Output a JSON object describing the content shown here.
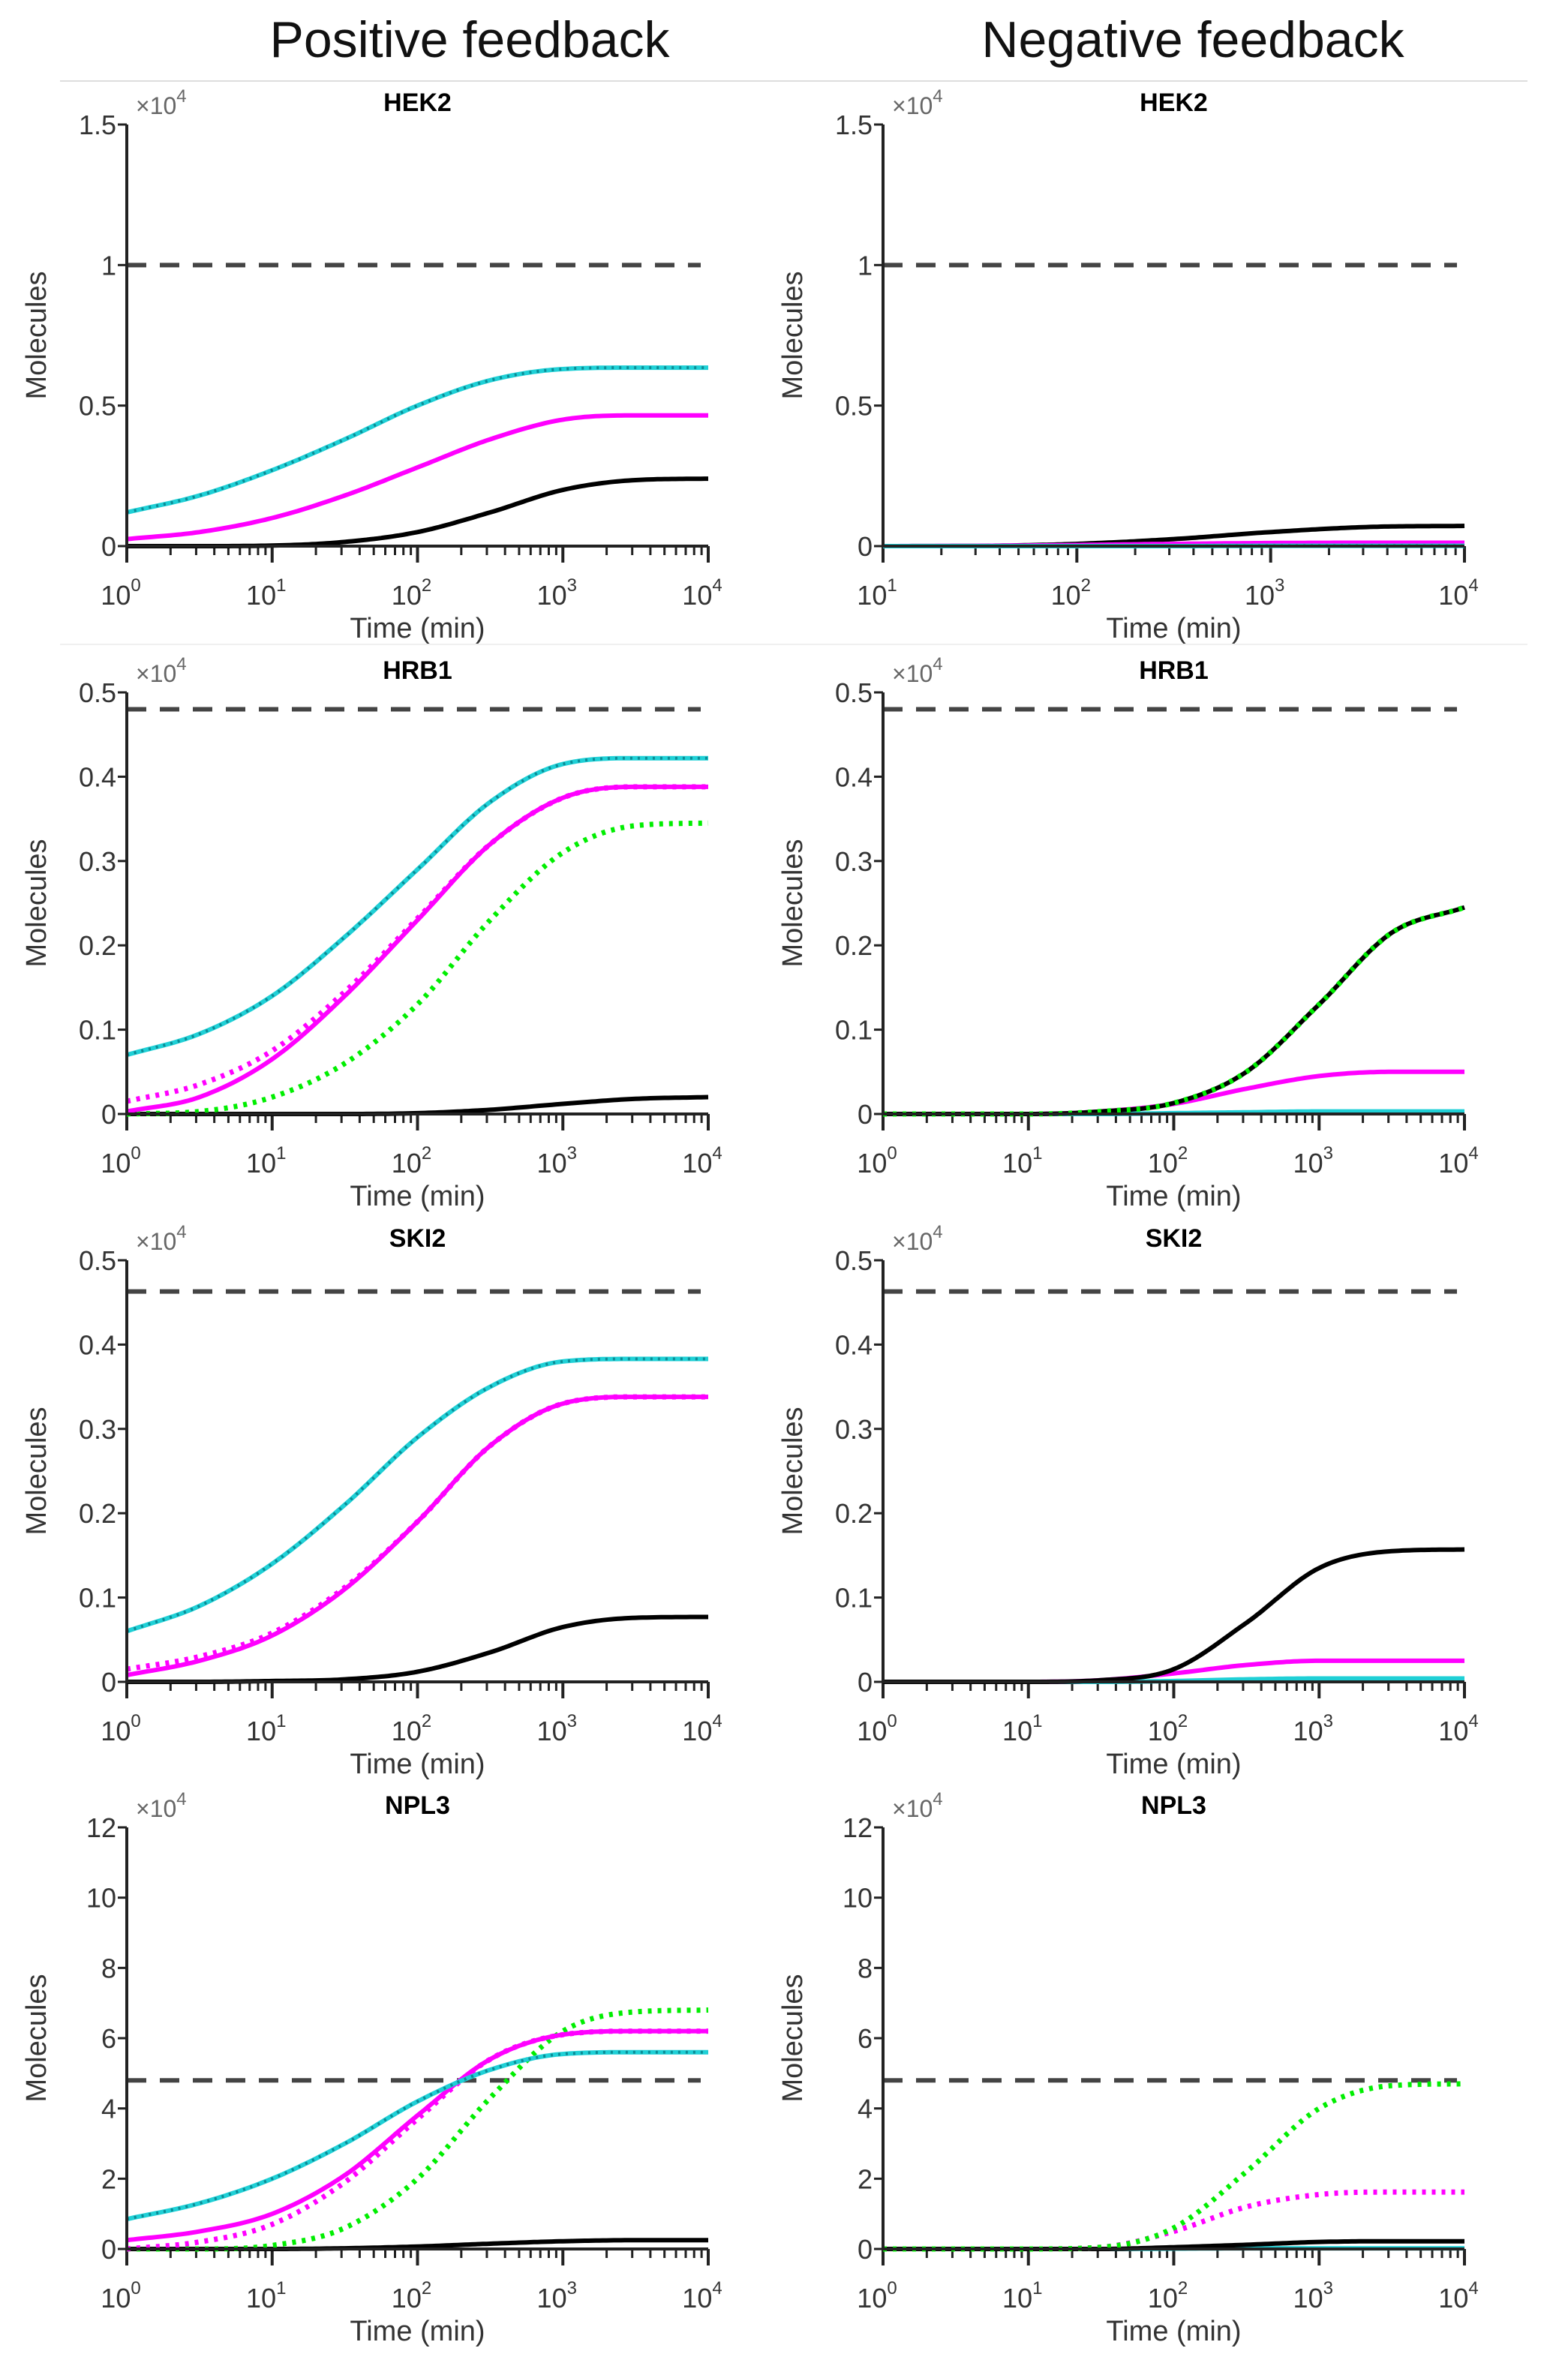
{
  "column_titles": [
    "Positive feedback",
    "Negative feedback"
  ],
  "colors": {
    "black": "#000000",
    "magenta": "#ff00ff",
    "cyan": "#1fd0d6",
    "teal_dots": "#0a8c96",
    "green": "#00ee00",
    "threshold": "#444444"
  },
  "chart_data": [
    {
      "type": "line",
      "title": "HEK2",
      "column": "Positive feedback",
      "xlabel": "Time (min)",
      "ylabel": "Molecules",
      "multiplier": {
        "base": "×10",
        "exp": "4"
      },
      "xscale": "log",
      "xlim_exp": [
        0,
        4
      ],
      "x_ticks": [
        {
          "base": "10",
          "exp": "0"
        },
        {
          "base": "10",
          "exp": "1"
        },
        {
          "base": "10",
          "exp": "2"
        },
        {
          "base": "10",
          "exp": "3"
        },
        {
          "base": "10",
          "exp": "4"
        }
      ],
      "ylim": [
        0,
        1.5
      ],
      "y_ticks": [
        "0",
        "0.5",
        "1",
        "1.5"
      ],
      "y_tick_values": [
        0,
        0.5,
        1,
        1.5
      ],
      "threshold": 1.0,
      "x": [
        1,
        3.16,
        10,
        31.6,
        100,
        316,
        1000,
        3162,
        10000
      ],
      "series": [
        {
          "name": "black-solid",
          "color": "black",
          "style": "solid",
          "values": [
            0,
            0,
            0.002,
            0.015,
            0.05,
            0.12,
            0.2,
            0.235,
            0.24
          ]
        },
        {
          "name": "magenta-solid",
          "color": "magenta",
          "style": "solid",
          "values": [
            0.025,
            0.05,
            0.1,
            0.18,
            0.28,
            0.38,
            0.45,
            0.465,
            0.465
          ]
        },
        {
          "name": "cyan-solid",
          "color": "cyan",
          "style": "solid",
          "values": [
            0.12,
            0.18,
            0.27,
            0.38,
            0.5,
            0.59,
            0.63,
            0.635,
            0.635
          ]
        },
        {
          "name": "cyan-dotted",
          "color": "teal_dots",
          "style": "dotted",
          "values": [
            0.12,
            0.18,
            0.27,
            0.38,
            0.5,
            0.59,
            0.63,
            0.635,
            0.635
          ]
        }
      ]
    },
    {
      "type": "line",
      "title": "HEK2",
      "column": "Negative feedback",
      "xlabel": "Time (min)",
      "ylabel": "Molecules",
      "multiplier": {
        "base": "×10",
        "exp": "4"
      },
      "xscale": "log",
      "xlim_exp": [
        1,
        4
      ],
      "x_ticks": [
        {
          "base": "10",
          "exp": "1"
        },
        {
          "base": "10",
          "exp": "2"
        },
        {
          "base": "10",
          "exp": "3"
        },
        {
          "base": "10",
          "exp": "4"
        }
      ],
      "ylim": [
        0,
        1.5
      ],
      "y_ticks": [
        "0",
        "0.5",
        "1",
        "1.5"
      ],
      "y_tick_values": [
        0,
        0.5,
        1,
        1.5
      ],
      "threshold": 1.0,
      "x": [
        10,
        31.6,
        100,
        316,
        1000,
        3162,
        10000
      ],
      "series": [
        {
          "name": "black-solid",
          "color": "black",
          "style": "solid",
          "values": [
            0,
            0.001,
            0.008,
            0.025,
            0.05,
            0.068,
            0.072
          ]
        },
        {
          "name": "magenta-solid",
          "color": "magenta",
          "style": "solid",
          "values": [
            0,
            0.001,
            0.004,
            0.008,
            0.011,
            0.012,
            0.012
          ]
        },
        {
          "name": "cyan-solid",
          "color": "cyan",
          "style": "solid",
          "values": [
            0,
            0,
            0,
            0,
            0.001,
            0.001,
            0.001
          ]
        },
        {
          "name": "cyan-dotted",
          "color": "teal_dots",
          "style": "dotted",
          "values": [
            0,
            0,
            0,
            0,
            0.001,
            0.001,
            0.001
          ]
        }
      ]
    },
    {
      "type": "line",
      "title": "HRB1",
      "column": "Positive feedback",
      "xlabel": "Time (min)",
      "ylabel": "Molecules",
      "multiplier": {
        "base": "×10",
        "exp": "4"
      },
      "xscale": "log",
      "xlim_exp": [
        0,
        4
      ],
      "x_ticks": [
        {
          "base": "10",
          "exp": "0"
        },
        {
          "base": "10",
          "exp": "1"
        },
        {
          "base": "10",
          "exp": "2"
        },
        {
          "base": "10",
          "exp": "3"
        },
        {
          "base": "10",
          "exp": "4"
        }
      ],
      "ylim": [
        0,
        0.5
      ],
      "y_ticks": [
        "0",
        "0.1",
        "0.2",
        "0.3",
        "0.4",
        "0.5"
      ],
      "y_tick_values": [
        0,
        0.1,
        0.2,
        0.3,
        0.4,
        0.5
      ],
      "threshold": 0.48,
      "x": [
        1,
        3.16,
        10,
        31.6,
        100,
        316,
        1000,
        3162,
        10000
      ],
      "series": [
        {
          "name": "black-solid",
          "color": "black",
          "style": "solid",
          "values": [
            0,
            0,
            0,
            0,
            0.001,
            0.005,
            0.012,
            0.018,
            0.02
          ]
        },
        {
          "name": "green-dotted",
          "color": "green",
          "style": "dotted",
          "values": [
            0,
            0.003,
            0.02,
            0.06,
            0.13,
            0.23,
            0.31,
            0.342,
            0.345
          ]
        },
        {
          "name": "magenta-dotted",
          "color": "magenta",
          "style": "dotted",
          "values": [
            0.015,
            0.035,
            0.075,
            0.145,
            0.232,
            0.32,
            0.375,
            0.388,
            0.388
          ]
        },
        {
          "name": "magenta-solid",
          "color": "magenta",
          "style": "solid",
          "values": [
            0.003,
            0.02,
            0.065,
            0.14,
            0.23,
            0.32,
            0.375,
            0.388,
            0.388
          ]
        },
        {
          "name": "cyan-solid",
          "color": "cyan",
          "style": "solid",
          "values": [
            0.07,
            0.095,
            0.14,
            0.21,
            0.29,
            0.37,
            0.415,
            0.422,
            0.422
          ]
        },
        {
          "name": "cyan-dotted",
          "color": "teal_dots",
          "style": "dotted",
          "values": [
            0.07,
            0.095,
            0.14,
            0.21,
            0.29,
            0.37,
            0.415,
            0.422,
            0.422
          ]
        }
      ]
    },
    {
      "type": "line",
      "title": "HRB1",
      "column": "Negative feedback",
      "xlabel": "Time (min)",
      "ylabel": "Molecules",
      "multiplier": {
        "base": "×10",
        "exp": "4"
      },
      "xscale": "log",
      "xlim_exp": [
        0,
        4
      ],
      "x_ticks": [
        {
          "base": "10",
          "exp": "0"
        },
        {
          "base": "10",
          "exp": "1"
        },
        {
          "base": "10",
          "exp": "2"
        },
        {
          "base": "10",
          "exp": "3"
        },
        {
          "base": "10",
          "exp": "4"
        }
      ],
      "ylim": [
        0,
        0.5
      ],
      "y_ticks": [
        "0",
        "0.1",
        "0.2",
        "0.3",
        "0.4",
        "0.5"
      ],
      "y_tick_values": [
        0,
        0.1,
        0.2,
        0.3,
        0.4,
        0.5
      ],
      "threshold": 0.48,
      "x": [
        1,
        3.16,
        10,
        31.6,
        100,
        316,
        1000,
        3162,
        10000
      ],
      "series": [
        {
          "name": "cyan-solid",
          "color": "cyan",
          "style": "solid",
          "values": [
            0,
            0,
            0,
            0,
            0.001,
            0.002,
            0.003,
            0.003,
            0.003
          ]
        },
        {
          "name": "magenta-solid",
          "color": "magenta",
          "style": "solid",
          "values": [
            0,
            0,
            0,
            0.003,
            0.012,
            0.03,
            0.045,
            0.05,
            0.05
          ]
        },
        {
          "name": "black-solid",
          "color": "black",
          "style": "solid",
          "values": [
            0,
            0,
            0,
            0.003,
            0.013,
            0.05,
            0.13,
            0.215,
            0.245
          ]
        },
        {
          "name": "green-dotted",
          "color": "green",
          "style": "dotted",
          "values": [
            0,
            0,
            0,
            0.003,
            0.013,
            0.05,
            0.13,
            0.215,
            0.245
          ]
        }
      ]
    },
    {
      "type": "line",
      "title": "SKI2",
      "column": "Positive feedback",
      "xlabel": "Time (min)",
      "ylabel": "Molecules",
      "multiplier": {
        "base": "×10",
        "exp": "4"
      },
      "xscale": "log",
      "xlim_exp": [
        0,
        4
      ],
      "x_ticks": [
        {
          "base": "10",
          "exp": "0"
        },
        {
          "base": "10",
          "exp": "1"
        },
        {
          "base": "10",
          "exp": "2"
        },
        {
          "base": "10",
          "exp": "3"
        },
        {
          "base": "10",
          "exp": "4"
        }
      ],
      "ylim": [
        0,
        0.5
      ],
      "y_ticks": [
        "0",
        "0.1",
        "0.2",
        "0.3",
        "0.4",
        "0.5"
      ],
      "y_tick_values": [
        0,
        0.1,
        0.2,
        0.3,
        0.4,
        0.5
      ],
      "threshold": 0.463,
      "x": [
        1,
        3.16,
        10,
        31.6,
        100,
        316,
        1000,
        3162,
        10000
      ],
      "series": [
        {
          "name": "black-solid",
          "color": "black",
          "style": "solid",
          "values": [
            0,
            0,
            0.001,
            0.003,
            0.012,
            0.035,
            0.065,
            0.076,
            0.077
          ]
        },
        {
          "name": "magenta-dotted",
          "color": "magenta",
          "style": "dotted",
          "values": [
            0.015,
            0.03,
            0.058,
            0.112,
            0.19,
            0.28,
            0.33,
            0.338,
            0.338
          ]
        },
        {
          "name": "magenta-solid",
          "color": "magenta",
          "style": "solid",
          "values": [
            0.008,
            0.025,
            0.055,
            0.11,
            0.19,
            0.28,
            0.33,
            0.338,
            0.338
          ]
        },
        {
          "name": "cyan-solid",
          "color": "cyan",
          "style": "solid",
          "values": [
            0.06,
            0.09,
            0.14,
            0.21,
            0.29,
            0.35,
            0.38,
            0.383,
            0.383
          ]
        },
        {
          "name": "cyan-dotted",
          "color": "teal_dots",
          "style": "dotted",
          "values": [
            0.06,
            0.09,
            0.14,
            0.21,
            0.29,
            0.35,
            0.38,
            0.383,
            0.383
          ]
        }
      ]
    },
    {
      "type": "line",
      "title": "SKI2",
      "column": "Negative feedback",
      "xlabel": "Time (min)",
      "ylabel": "Molecules",
      "multiplier": {
        "base": "×10",
        "exp": "4"
      },
      "xscale": "log",
      "xlim_exp": [
        0,
        4
      ],
      "x_ticks": [
        {
          "base": "10",
          "exp": "0"
        },
        {
          "base": "10",
          "exp": "1"
        },
        {
          "base": "10",
          "exp": "2"
        },
        {
          "base": "10",
          "exp": "3"
        },
        {
          "base": "10",
          "exp": "4"
        }
      ],
      "ylim": [
        0,
        0.5
      ],
      "y_ticks": [
        "0",
        "0.1",
        "0.2",
        "0.3",
        "0.4",
        "0.5"
      ],
      "y_tick_values": [
        0,
        0.1,
        0.2,
        0.3,
        0.4,
        0.5
      ],
      "threshold": 0.463,
      "x": [
        1,
        3.16,
        10,
        31.6,
        100,
        316,
        1000,
        3162,
        10000
      ],
      "series": [
        {
          "name": "cyan-solid",
          "color": "cyan",
          "style": "solid",
          "values": [
            0,
            0,
            0,
            0,
            0.001,
            0.003,
            0.004,
            0.004,
            0.004
          ]
        },
        {
          "name": "magenta-solid",
          "color": "magenta",
          "style": "solid",
          "values": [
            0,
            0,
            0,
            0.002,
            0.01,
            0.02,
            0.025,
            0.025,
            0.025
          ]
        },
        {
          "name": "black-solid",
          "color": "black",
          "style": "solid",
          "values": [
            0,
            0,
            0,
            0.002,
            0.015,
            0.07,
            0.135,
            0.155,
            0.157
          ]
        }
      ]
    },
    {
      "type": "line",
      "title": "NPL3",
      "column": "Positive feedback",
      "xlabel": "Time (min)",
      "ylabel": "Molecules",
      "multiplier": {
        "base": "×10",
        "exp": "4"
      },
      "xscale": "log",
      "xlim_exp": [
        0,
        4
      ],
      "x_ticks": [
        {
          "base": "10",
          "exp": "0"
        },
        {
          "base": "10",
          "exp": "1"
        },
        {
          "base": "10",
          "exp": "2"
        },
        {
          "base": "10",
          "exp": "3"
        },
        {
          "base": "10",
          "exp": "4"
        }
      ],
      "ylim": [
        0,
        12
      ],
      "y_ticks": [
        "0",
        "2",
        "4",
        "6",
        "8",
        "10",
        "12"
      ],
      "y_tick_values": [
        0,
        2,
        4,
        6,
        8,
        10,
        12
      ],
      "threshold": 4.8,
      "x": [
        1,
        3.16,
        10,
        31.6,
        100,
        316,
        1000,
        3162,
        10000
      ],
      "series": [
        {
          "name": "black-solid",
          "color": "black",
          "style": "solid",
          "values": [
            0,
            0,
            0,
            0.02,
            0.07,
            0.15,
            0.22,
            0.25,
            0.25
          ]
        },
        {
          "name": "green-dotted",
          "color": "green",
          "style": "dotted",
          "values": [
            0,
            0,
            0.1,
            0.6,
            2.0,
            4.3,
            6.2,
            6.75,
            6.8
          ]
        },
        {
          "name": "magenta-dotted",
          "color": "magenta",
          "style": "dotted",
          "values": [
            0,
            0.2,
            0.7,
            1.9,
            3.7,
            5.4,
            6.1,
            6.2,
            6.2
          ]
        },
        {
          "name": "magenta-solid",
          "color": "magenta",
          "style": "solid",
          "values": [
            0.25,
            0.5,
            1.0,
            2.1,
            3.8,
            5.4,
            6.1,
            6.2,
            6.2
          ]
        },
        {
          "name": "cyan-solid",
          "color": "cyan",
          "style": "solid",
          "values": [
            0.85,
            1.3,
            2.0,
            3.0,
            4.2,
            5.1,
            5.55,
            5.6,
            5.6
          ]
        },
        {
          "name": "cyan-dotted",
          "color": "teal_dots",
          "style": "dotted",
          "values": [
            0.85,
            1.3,
            2.0,
            3.0,
            4.2,
            5.1,
            5.55,
            5.6,
            5.6
          ]
        }
      ]
    },
    {
      "type": "line",
      "title": "NPL3",
      "column": "Negative feedback",
      "xlabel": "Time (min)",
      "ylabel": "Molecules",
      "multiplier": {
        "base": "×10",
        "exp": "4"
      },
      "xscale": "log",
      "xlim_exp": [
        0,
        4
      ],
      "x_ticks": [
        {
          "base": "10",
          "exp": "0"
        },
        {
          "base": "10",
          "exp": "1"
        },
        {
          "base": "10",
          "exp": "2"
        },
        {
          "base": "10",
          "exp": "3"
        },
        {
          "base": "10",
          "exp": "4"
        }
      ],
      "ylim": [
        0,
        12
      ],
      "y_ticks": [
        "0",
        "2",
        "4",
        "6",
        "8",
        "10",
        "12"
      ],
      "y_tick_values": [
        0,
        2,
        4,
        6,
        8,
        10,
        12
      ],
      "threshold": 4.8,
      "x": [
        1,
        3.16,
        10,
        31.6,
        100,
        316,
        1000,
        3162,
        10000
      ],
      "series": [
        {
          "name": "cyan-solid",
          "color": "cyan",
          "style": "solid",
          "values": [
            0,
            0,
            0,
            0,
            0.01,
            0.02,
            0.02,
            0.02,
            0.02
          ]
        },
        {
          "name": "black-solid",
          "color": "black",
          "style": "solid",
          "values": [
            0,
            0,
            0,
            0,
            0.05,
            0.12,
            0.2,
            0.22,
            0.22
          ]
        },
        {
          "name": "magenta-dotted",
          "color": "magenta",
          "style": "dotted",
          "values": [
            0,
            0,
            0,
            0.05,
            0.5,
            1.2,
            1.55,
            1.62,
            1.62
          ]
        },
        {
          "name": "green-dotted",
          "color": "green",
          "style": "dotted",
          "values": [
            0,
            0,
            0,
            0.05,
            0.6,
            2.2,
            4.0,
            4.65,
            4.7
          ]
        }
      ]
    }
  ]
}
